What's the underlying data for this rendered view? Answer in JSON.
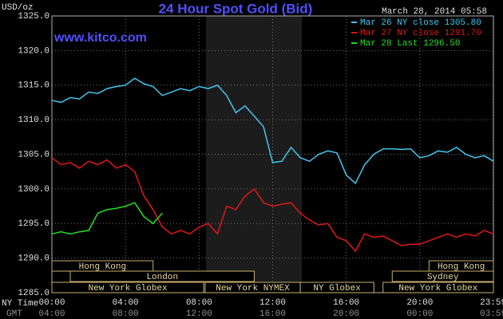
{
  "chart_data": {
    "type": "line",
    "title": "24 Hour Spot Gold (Bid)",
    "subtitle": "www.kitco.com",
    "timestamp": "March 28, 2014 05:58",
    "y_label": "USD/oz",
    "x_label": "NY Time",
    "x2_label": "GMT",
    "xlim": [
      0,
      24
    ],
    "ylim": [
      1285,
      1325
    ],
    "yticks": [
      {
        "value": 1285,
        "label": "1285.0"
      },
      {
        "value": 1290,
        "label": "1290.0"
      },
      {
        "value": 1295,
        "label": "1295.0"
      },
      {
        "value": 1300,
        "label": "1300.0"
      },
      {
        "value": 1305,
        "label": "1305.0"
      },
      {
        "value": 1310,
        "label": "1310.0"
      },
      {
        "value": 1315,
        "label": "1315.0"
      },
      {
        "value": 1320,
        "label": "1320.0"
      },
      {
        "value": 1325,
        "label": "1325.0"
      }
    ],
    "xticks": [
      {
        "value": 0,
        "label": "00:00"
      },
      {
        "value": 4,
        "label": "04:00"
      },
      {
        "value": 8,
        "label": "08:00"
      },
      {
        "value": 12,
        "label": "12:00"
      },
      {
        "value": 16,
        "label": "16:00"
      },
      {
        "value": 20,
        "label": "20:00"
      },
      {
        "value": 23.983,
        "label": "23:59"
      }
    ],
    "x2ticks": [
      {
        "value": 0,
        "label": "04:00"
      },
      {
        "value": 4,
        "label": "08:00"
      },
      {
        "value": 8,
        "label": "12:00"
      },
      {
        "value": 12,
        "label": "16:00"
      },
      {
        "value": 16,
        "label": "20:00"
      },
      {
        "value": 20,
        "label": "00:00"
      },
      {
        "value": 23.983,
        "label": "03:59"
      }
    ],
    "grid": true,
    "sessions": [
      {
        "label": "Hong Kong",
        "start": 0,
        "end": 5.5,
        "row": 0
      },
      {
        "label": "Hong Kong",
        "start": 20.5,
        "end": 24,
        "row": 0
      },
      {
        "label": "London",
        "start": 1,
        "end": 11,
        "row": 1
      },
      {
        "label": "Sydney",
        "start": 18.5,
        "end": 24,
        "row": 1
      },
      {
        "label": "New York Globex",
        "start": 0,
        "end": 8.25,
        "row": 2
      },
      {
        "label": "New York NYMEX",
        "start": 8.33,
        "end": 13.5,
        "row": 2
      },
      {
        "label": "NY Globex",
        "start": 13.5,
        "end": 17.5,
        "row": 2
      },
      {
        "label": "New York Globex",
        "start": 18,
        "end": 24,
        "row": 2
      }
    ],
    "series": [
      {
        "name": "Mar 26 NY close 1305.80",
        "color": "#40c8f0",
        "x": [
          0,
          0.5,
          1,
          1.5,
          2,
          2.5,
          3,
          3.5,
          4,
          4.5,
          5,
          5.5,
          6,
          6.5,
          7,
          7.5,
          8,
          8.5,
          9,
          9.5,
          10,
          10.5,
          11,
          11.5,
          12,
          12.5,
          13,
          13.5,
          14,
          14.5,
          15,
          15.5,
          16,
          16.5,
          17,
          17.5,
          18,
          18.5,
          19,
          19.5,
          20,
          20.5,
          21,
          21.5,
          22,
          22.5,
          23,
          23.5,
          24
        ],
        "values": [
          1312.8,
          1312.5,
          1313.2,
          1313.0,
          1314.0,
          1313.8,
          1314.5,
          1314.8,
          1315.0,
          1316.0,
          1315.2,
          1314.8,
          1313.5,
          1314.0,
          1314.5,
          1314.2,
          1314.8,
          1314.5,
          1315.0,
          1313.5,
          1311.0,
          1312.0,
          1310.5,
          1309.0,
          1303.8,
          1304.0,
          1306.0,
          1304.5,
          1304.0,
          1305.0,
          1305.5,
          1305.2,
          1302.0,
          1300.8,
          1303.5,
          1305.0,
          1305.8,
          1305.8,
          1305.7,
          1305.8,
          1304.5,
          1304.8,
          1305.5,
          1305.3,
          1306.0,
          1305.0,
          1304.5,
          1304.8,
          1304.0
        ]
      },
      {
        "name": "Mar 27 NY close 1291.70",
        "color": "#e01818",
        "x": [
          0,
          0.5,
          1,
          1.5,
          2,
          2.5,
          3,
          3.5,
          4,
          4.5,
          5,
          5.5,
          6,
          6.5,
          7,
          7.5,
          8,
          8.5,
          9,
          9.5,
          10,
          10.5,
          11,
          11.5,
          12,
          12.5,
          13,
          13.5,
          14,
          14.5,
          15,
          15.5,
          16,
          16.5,
          17,
          17.5,
          18,
          18.5,
          19,
          19.5,
          20,
          20.5,
          21,
          21.5,
          22,
          22.5,
          23,
          23.5,
          24
        ],
        "values": [
          1304.5,
          1303.5,
          1303.8,
          1303.0,
          1304.0,
          1303.5,
          1304.2,
          1303.0,
          1303.5,
          1302.5,
          1299.0,
          1297.0,
          1294.5,
          1293.5,
          1294.0,
          1293.5,
          1294.5,
          1295.0,
          1293.5,
          1297.5,
          1297.0,
          1299.0,
          1300.0,
          1298.0,
          1297.5,
          1297.8,
          1298.0,
          1296.5,
          1295.5,
          1294.8,
          1295.0,
          1293.0,
          1292.5,
          1291.0,
          1293.5,
          1293.0,
          1293.2,
          1292.5,
          1291.8,
          1292.0,
          1292.0,
          1292.5,
          1293.0,
          1293.5,
          1293.0,
          1293.5,
          1293.2,
          1294.0,
          1293.5
        ]
      },
      {
        "name": "Mar 28 Last 1296.50",
        "color": "#20e020",
        "x": [
          0,
          0.5,
          1,
          1.5,
          2,
          2.5,
          3,
          3.5,
          4,
          4.5,
          5,
          5.5,
          6
        ],
        "values": [
          1293.5,
          1293.8,
          1293.5,
          1293.8,
          1294.0,
          1296.5,
          1297.0,
          1297.2,
          1297.5,
          1298.0,
          1296.0,
          1295.0,
          1296.5
        ]
      }
    ]
  }
}
